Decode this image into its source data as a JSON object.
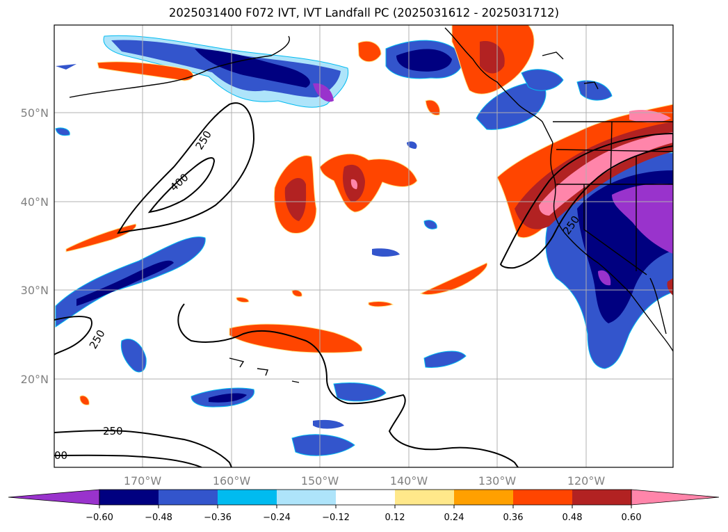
{
  "title": "2025031400 F072 IVT, IVT Landfall PC (2025031612 - 2025031712)",
  "lat_labels": [
    "50°N",
    "40°N",
    "30°N",
    "20°N"
  ],
  "lon_labels": [
    "170°W",
    "160°W",
    "150°W",
    "140°W",
    "130°W",
    "120°W"
  ],
  "colorbar": {
    "ticks": [
      "−0.60",
      "−0.48",
      "−0.36",
      "−0.24",
      "−0.12",
      "0.12",
      "0.24",
      "0.36",
      "0.48",
      "0.60"
    ],
    "colors": [
      "#9933cc",
      "#000080",
      "#3355cc",
      "#00bbf0",
      "#aee4fa",
      "#ffffff",
      "#ffe88a",
      "#ffa000",
      "#ff4500",
      "#b22222",
      "#ff85aa"
    ]
  },
  "contour_labels": [
    "250",
    "400",
    "250",
    "250",
    "250",
    "00"
  ]
}
